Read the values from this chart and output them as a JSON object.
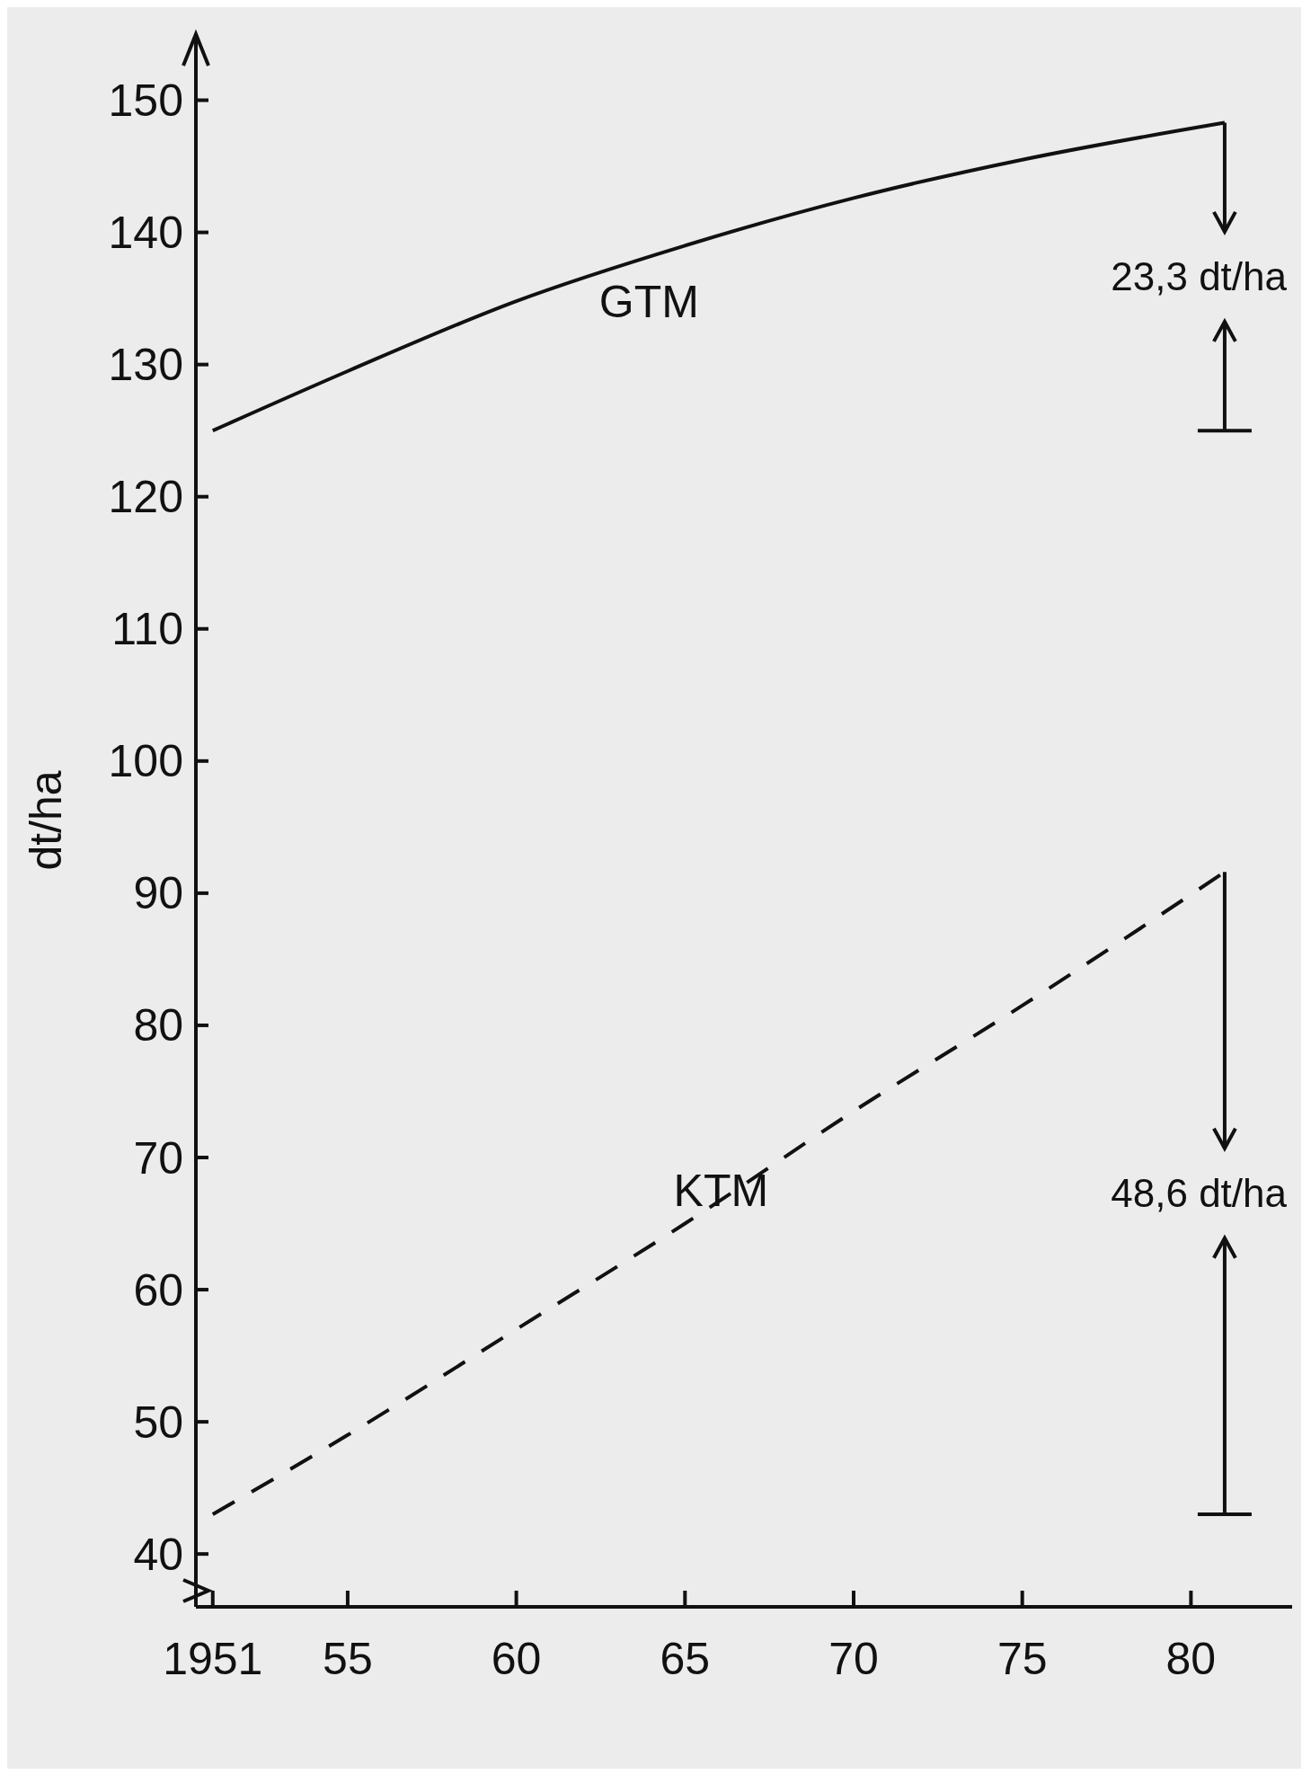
{
  "chart_data": {
    "type": "line",
    "ylabel": "dt/ha",
    "x": [
      1951,
      1955,
      1960,
      1965,
      1970,
      1975,
      1981
    ],
    "series": [
      {
        "name": "GTM",
        "color": "#111111",
        "line_style": "solid",
        "values": [
          125,
          129.5,
          134.8,
          139,
          142.6,
          145.5,
          148.3
        ]
      },
      {
        "name": "KTM",
        "color": "#111111",
        "line_style": "dashed",
        "values": [
          43,
          49,
          57,
          65,
          73.5,
          81.5,
          91.6
        ]
      }
    ],
    "xlim": [
      1950.5,
      1983
    ],
    "ylim": [
      36,
      155
    ],
    "xticks": [
      {
        "value": 1951,
        "label": "1951"
      },
      {
        "value": 1955,
        "label": "55"
      },
      {
        "value": 1960,
        "label": "60"
      },
      {
        "value": 1965,
        "label": "65"
      },
      {
        "value": 1970,
        "label": "70"
      },
      {
        "value": 1975,
        "label": "75"
      },
      {
        "value": 1980,
        "label": "80"
      }
    ],
    "yticks": [
      40,
      50,
      60,
      70,
      80,
      90,
      100,
      110,
      120,
      130,
      140,
      150
    ],
    "annotations": [
      {
        "text": "23,3 dt/ha",
        "x": 1981,
        "y": 148.3
      },
      {
        "text": "48,6 dt/ha",
        "x": 1981,
        "y": 91.6
      }
    ],
    "grid": false,
    "marker": "none"
  }
}
